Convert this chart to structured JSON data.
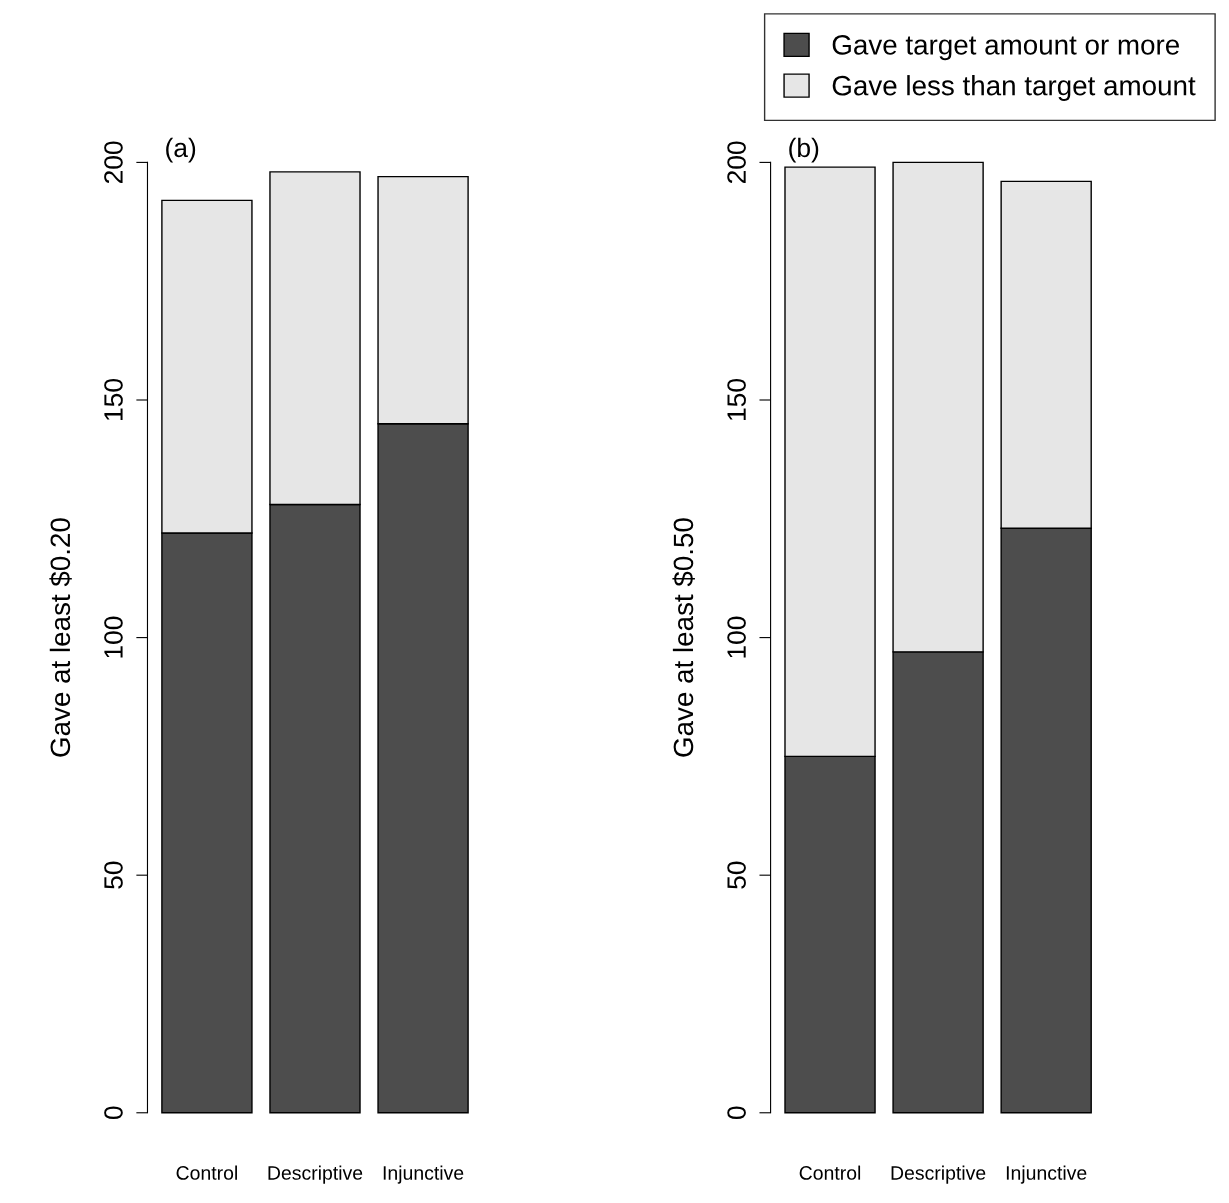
{
  "chart_data": [
    {
      "type": "bar",
      "stacked": true,
      "categories": [
        "Control",
        "Descriptive",
        "Injunctive"
      ],
      "ylabel": "Gave at least $0.20",
      "ylim": [
        0,
        200
      ],
      "yticks": [
        0,
        50,
        100,
        150,
        200
      ],
      "grid": false,
      "legend": false,
      "annotations": [
        "(a)"
      ],
      "series": [
        {
          "color": "#4d4d4d",
          "values": [
            122,
            128,
            145
          ]
        },
        {
          "color": "#e6e6e6",
          "values": [
            70,
            70,
            52
          ]
        }
      ]
    },
    {
      "type": "bar",
      "stacked": true,
      "categories": [
        "Control",
        "Descriptive",
        "Injunctive"
      ],
      "ylabel": "Gave at least $0.50",
      "ylim": [
        0,
        200
      ],
      "yticks": [
        0,
        50,
        100,
        150,
        200
      ],
      "grid": false,
      "legend": "top right",
      "annotations": [
        "(b)"
      ],
      "series": [
        {
          "name": "Gave target amount or more",
          "color": "#4d4d4d",
          "values": [
            75,
            97,
            123
          ]
        },
        {
          "name": "Gave less than target amount",
          "color": "#e6e6e6",
          "values": [
            124,
            103,
            73
          ]
        }
      ]
    }
  ]
}
